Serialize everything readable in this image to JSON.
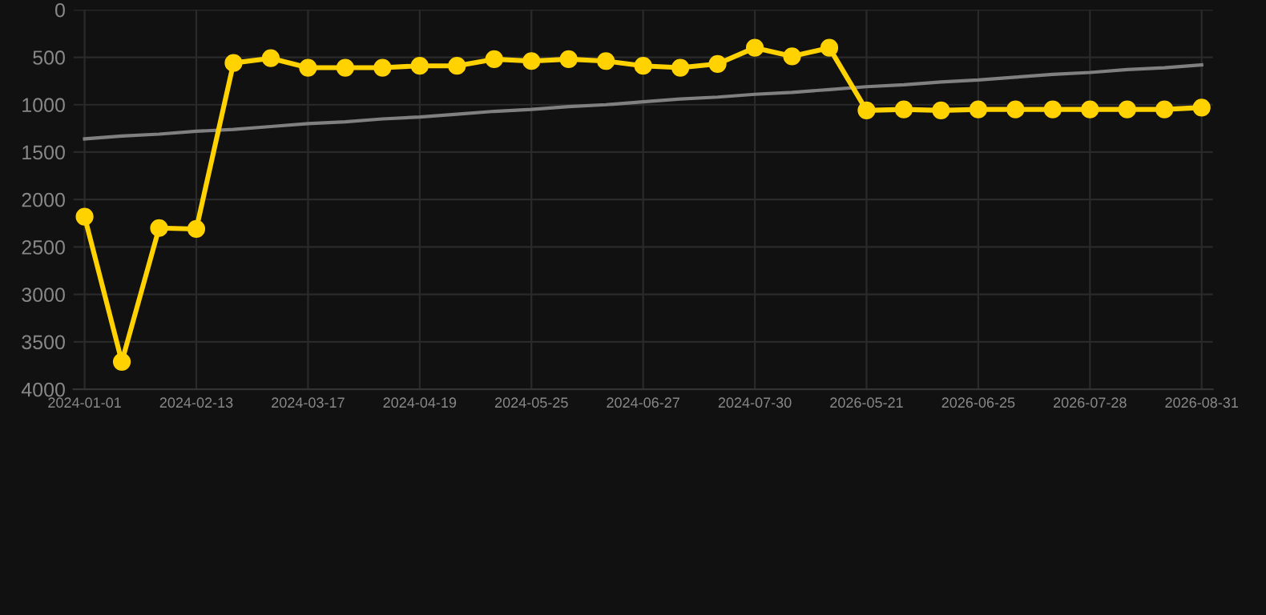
{
  "chart_data": {
    "type": "line",
    "categories": [
      "2024-01-01",
      null,
      null,
      "2024-02-13",
      null,
      null,
      "2024-03-17",
      null,
      null,
      "2024-04-19",
      null,
      null,
      "2024-05-25",
      null,
      null,
      "2024-06-27",
      null,
      null,
      "2024-07-30",
      null,
      null,
      "2026-05-21",
      null,
      null,
      "2026-06-25",
      null,
      null,
      "2026-07-28",
      null,
      null,
      "2026-08-31"
    ],
    "series": [
      {
        "color": "#ffd200",
        "marker": "circle",
        "values": [
          2180,
          3710,
          2300,
          2310,
          560,
          510,
          610,
          610,
          610,
          590,
          590,
          520,
          540,
          520,
          540,
          590,
          610,
          570,
          400,
          490,
          400,
          1060,
          1050,
          1060,
          1050,
          1050,
          1050,
          1050,
          1050,
          1050,
          1030
        ]
      },
      {
        "color": "#808080",
        "marker": "none",
        "values": [
          1360,
          1330,
          1310,
          1280,
          1260,
          1230,
          1200,
          1180,
          1150,
          1130,
          1100,
          1070,
          1050,
          1020,
          1000,
          970,
          940,
          920,
          890,
          870,
          840,
          810,
          790,
          760,
          740,
          710,
          680,
          660,
          630,
          610,
          580
        ]
      }
    ],
    "ylim": [
      4000,
      0
    ],
    "yticks": [
      0,
      500,
      1000,
      1500,
      2000,
      2500,
      3000,
      3500,
      4000
    ],
    "grid": true,
    "legend": false
  }
}
